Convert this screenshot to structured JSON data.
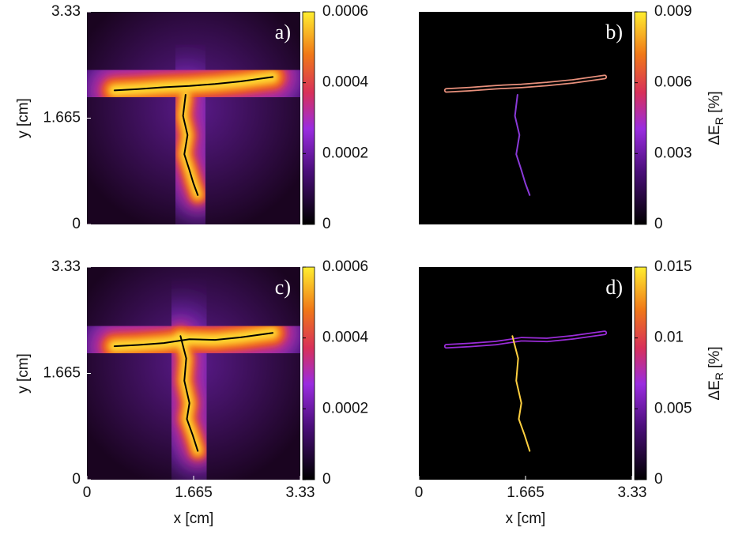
{
  "chart_data": [
    {
      "type": "heatmap",
      "panel_label": "a)",
      "xlim": [
        0,
        3.33
      ],
      "ylim": [
        0,
        3.33
      ],
      "yticks": [
        0,
        1.665,
        3.33
      ],
      "ylabel": "y [cm]",
      "clim": [
        0,
        0.0006
      ],
      "cticks": [
        0,
        0.0002,
        0.0004,
        0.0006
      ],
      "field": "glow",
      "cracks": [
        {
          "color": "#000000",
          "x": [
            0.43,
            0.8,
            1.2,
            1.6,
            2.0,
            2.4,
            2.9
          ],
          "y": [
            2.1,
            2.12,
            2.15,
            2.17,
            2.2,
            2.24,
            2.31
          ]
        },
        {
          "color": "#000000",
          "x": [
            1.54,
            1.5,
            1.57,
            1.52,
            1.6,
            1.66,
            1.73
          ],
          "y": [
            2.03,
            1.7,
            1.4,
            1.1,
            0.85,
            0.65,
            0.46
          ]
        }
      ]
    },
    {
      "type": "heatmap",
      "panel_label": "b)",
      "xlim": [
        0,
        3.33
      ],
      "ylim": [
        0,
        3.33
      ],
      "colorbar_label": [
        "ΔE",
        "R",
        " [%]"
      ],
      "clim": [
        0,
        0.009
      ],
      "cticks": [
        0,
        0.003,
        0.006,
        0.009
      ],
      "field": "dark",
      "cracks": [
        {
          "color": "#e8907c",
          "x": [
            0.43,
            0.8,
            1.2,
            1.6,
            2.0,
            2.4,
            2.9
          ],
          "y": [
            2.1,
            2.12,
            2.15,
            2.17,
            2.2,
            2.24,
            2.31
          ]
        },
        {
          "color": "#8a3ad8",
          "x": [
            1.54,
            1.5,
            1.57,
            1.52,
            1.6,
            1.66,
            1.73
          ],
          "y": [
            2.03,
            1.7,
            1.4,
            1.1,
            0.85,
            0.65,
            0.46
          ]
        }
      ]
    },
    {
      "type": "heatmap",
      "panel_label": "c)",
      "xlim": [
        0,
        3.33
      ],
      "ylim": [
        0,
        3.33
      ],
      "xticks": [
        0,
        1.665,
        3.33
      ],
      "yticks": [
        0,
        1.665,
        3.33
      ],
      "xlabel": "x [cm]",
      "ylabel": "y [cm]",
      "clim": [
        0,
        0.0006
      ],
      "cticks": [
        0,
        0.0002,
        0.0004,
        0.0006
      ],
      "field": "glow",
      "cracks": [
        {
          "color": "#000000",
          "x": [
            0.43,
            0.8,
            1.2,
            1.6,
            2.0,
            2.4,
            2.9
          ],
          "y": [
            2.09,
            2.11,
            2.14,
            2.2,
            2.19,
            2.23,
            2.3
          ]
        },
        {
          "color": "#000000",
          "x": [
            1.46,
            1.55,
            1.52,
            1.6,
            1.56,
            1.65,
            1.73
          ],
          "y": [
            2.25,
            1.9,
            1.55,
            1.2,
            0.95,
            0.7,
            0.45
          ]
        }
      ]
    },
    {
      "type": "heatmap",
      "panel_label": "d)",
      "xlim": [
        0,
        3.33
      ],
      "ylim": [
        0,
        3.33
      ],
      "xticks": [
        0,
        1.665,
        3.33
      ],
      "xlabel": "x [cm]",
      "colorbar_label": [
        "ΔE",
        "R",
        " [%]"
      ],
      "clim": [
        0,
        0.015
      ],
      "cticks": [
        0,
        0.005,
        0.01,
        0.015
      ],
      "field": "dark",
      "cracks": [
        {
          "color": "#9a2cd8",
          "x": [
            0.43,
            0.8,
            1.2,
            1.6,
            2.0,
            2.4,
            2.9
          ],
          "y": [
            2.09,
            2.11,
            2.14,
            2.2,
            2.19,
            2.23,
            2.3
          ]
        },
        {
          "color": "#ffd040",
          "x": [
            1.46,
            1.55,
            1.52,
            1.6,
            1.56,
            1.65,
            1.73
          ],
          "y": [
            2.25,
            1.9,
            1.55,
            1.2,
            0.95,
            0.7,
            0.45
          ]
        }
      ]
    }
  ]
}
